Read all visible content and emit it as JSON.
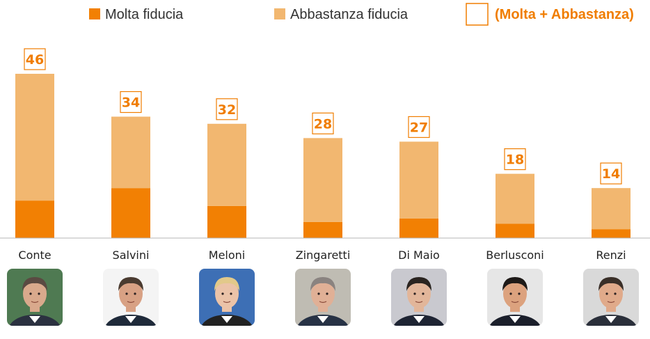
{
  "chart_data": {
    "type": "bar",
    "stacked": true,
    "categories": [
      "Conte",
      "Salvini",
      "Meloni",
      "Zingaretti",
      "Di Maio",
      "Berlusconi",
      "Renzi"
    ],
    "series": [
      {
        "name": "Molta fiducia",
        "color": "#f28003",
        "values": [
          10.5,
          14,
          9,
          4.5,
          5.5,
          4,
          2.5
        ]
      },
      {
        "name": "Abbastanza fiducia",
        "color": "#f2b770",
        "values": [
          35.5,
          20,
          23,
          23.5,
          21.5,
          14,
          11.5
        ]
      }
    ],
    "totals": [
      46,
      34,
      32,
      28,
      27,
      18,
      14
    ],
    "totals_legend": "(Molta + Abbastanza)",
    "totals_color": "#f07d00",
    "ylim": [
      0,
      48
    ],
    "grid": false,
    "legend_position": "top",
    "photos": [
      {
        "icon": "portrait-photo",
        "bg": "#4f7a52",
        "skin": "#d9a98c",
        "hair": "#5a4a42",
        "suit": "#2b3140"
      },
      {
        "icon": "portrait-photo",
        "bg": "#f4f4f4",
        "skin": "#d8a184",
        "hair": "#4a3b30",
        "suit": "#1f2a3a"
      },
      {
        "icon": "portrait-photo",
        "bg": "#3d6fb5",
        "skin": "#ebc3a8",
        "hair": "#e2c98a",
        "suit": "#222222"
      },
      {
        "icon": "portrait-photo",
        "bg": "#bfbcb3",
        "skin": "#e0b096",
        "hair": "#8a8380",
        "suit": "#273245"
      },
      {
        "icon": "portrait-photo",
        "bg": "#c9c9cf",
        "skin": "#e2b69a",
        "hair": "#2a2420",
        "suit": "#1e2433"
      },
      {
        "icon": "portrait-photo",
        "bg": "#e6e6e6",
        "skin": "#dca27e",
        "hair": "#1e1a18",
        "suit": "#1b1f2b"
      },
      {
        "icon": "portrait-photo",
        "bg": "#d9d9d9",
        "skin": "#e0aa8a",
        "hair": "#3a2f28",
        "suit": "#2a2f3a"
      }
    ]
  }
}
